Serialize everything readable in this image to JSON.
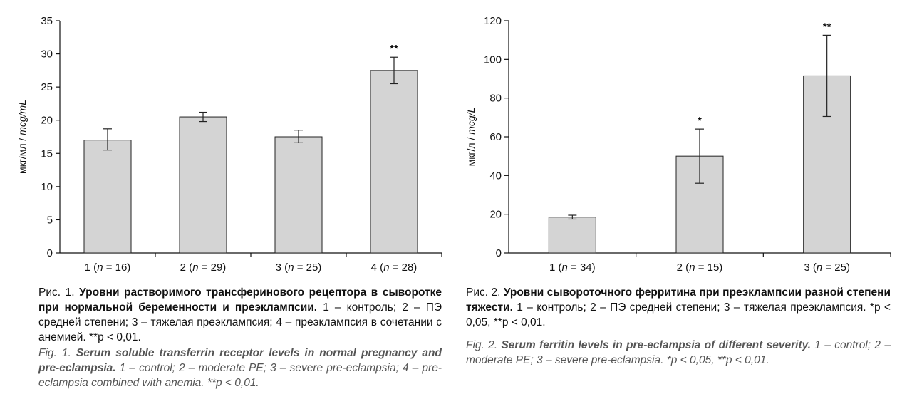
{
  "chart_data": [
    {
      "type": "bar",
      "ylabel": "мкг/мл / mcg/mL",
      "ylabel_main": "мкг/мл / ",
      "ylabel_italic": "mcg/mL",
      "ylim": [
        0,
        35
      ],
      "yticks": [
        0,
        5,
        10,
        15,
        20,
        25,
        30,
        35
      ],
      "categories": [
        "1 (n = 16)",
        "2 (n = 29)",
        "3 (n = 25)",
        "4 (n = 28)"
      ],
      "category_parts": [
        {
          "pre": "1 (",
          "n": "n",
          "post": " = 16)"
        },
        {
          "pre": "2 (",
          "n": "n",
          "post": " = 29)"
        },
        {
          "pre": "3 (",
          "n": "n",
          "post": " = 25)"
        },
        {
          "pre": "4 (",
          "n": "n",
          "post": " = 28)"
        }
      ],
      "values": [
        17.0,
        20.5,
        17.5,
        27.5
      ],
      "error_low": [
        15.5,
        19.8,
        16.6,
        25.5
      ],
      "error_high": [
        18.7,
        21.2,
        18.5,
        29.5
      ],
      "annotations": [
        "",
        "",
        "",
        "**"
      ],
      "grid": false
    },
    {
      "type": "bar",
      "ylabel": "мкг/л / mcg/L",
      "ylabel_main": "мкг/л / ",
      "ylabel_italic": "mcg/L",
      "ylim": [
        0,
        120
      ],
      "yticks": [
        0,
        20,
        40,
        60,
        80,
        100,
        120
      ],
      "categories": [
        "1 (n = 34)",
        "2 (n = 15)",
        "3 (n = 25)"
      ],
      "category_parts": [
        {
          "pre": "1 (",
          "n": "n",
          "post": " = 34)"
        },
        {
          "pre": "2 (",
          "n": "n",
          "post": " = 15)"
        },
        {
          "pre": "3 (",
          "n": "n",
          "post": " = 25)"
        }
      ],
      "values": [
        18.5,
        50.0,
        91.5
      ],
      "error_low": [
        17.5,
        36.0,
        70.5
      ],
      "error_high": [
        19.5,
        64.0,
        112.5
      ],
      "annotations": [
        "",
        "*",
        "**"
      ],
      "grid": false
    }
  ],
  "captions": {
    "fig1": {
      "ru_prefix": "Рис. 1. ",
      "ru_bold": "Уровни растворимого трансферинового рецептора в сыворотке при нормальной беременности и преэклампсии.",
      "ru_rest": " 1 – контроль; 2 – ПЭ средней степени; 3 – тяжелая преэклампсия; 4 – преэклампсия в сочетании с анемией. **p < 0,01.",
      "en_prefix": "Fig. 1. ",
      "en_bold": "Serum soluble transferrin receptor levels in normal pregnancy and pre-eclampsia.",
      "en_rest": " 1 – control; 2 – moderate PE; 3 – severe pre-eclampsia; 4 – pre-eclampsia combined with anemia. **p < 0,01."
    },
    "fig2": {
      "ru_prefix": "Рис. 2. ",
      "ru_bold": "Уровни сывороточного ферритина при преэклампсии разной степени тяжести.",
      "ru_rest": " 1 – контроль; 2 – ПЭ средней степени; 3 – тяжелая преэклампсия. *p < 0,05, **p < 0,01.",
      "en_prefix": "Fig. 2. ",
      "en_bold": "Serum ferritin levels in pre-eclampsia of different severity.",
      "en_rest": " 1 – control; 2 – moderate PE; 3 – severe pre-eclampsia. *p < 0,05, **p < 0,01."
    }
  }
}
